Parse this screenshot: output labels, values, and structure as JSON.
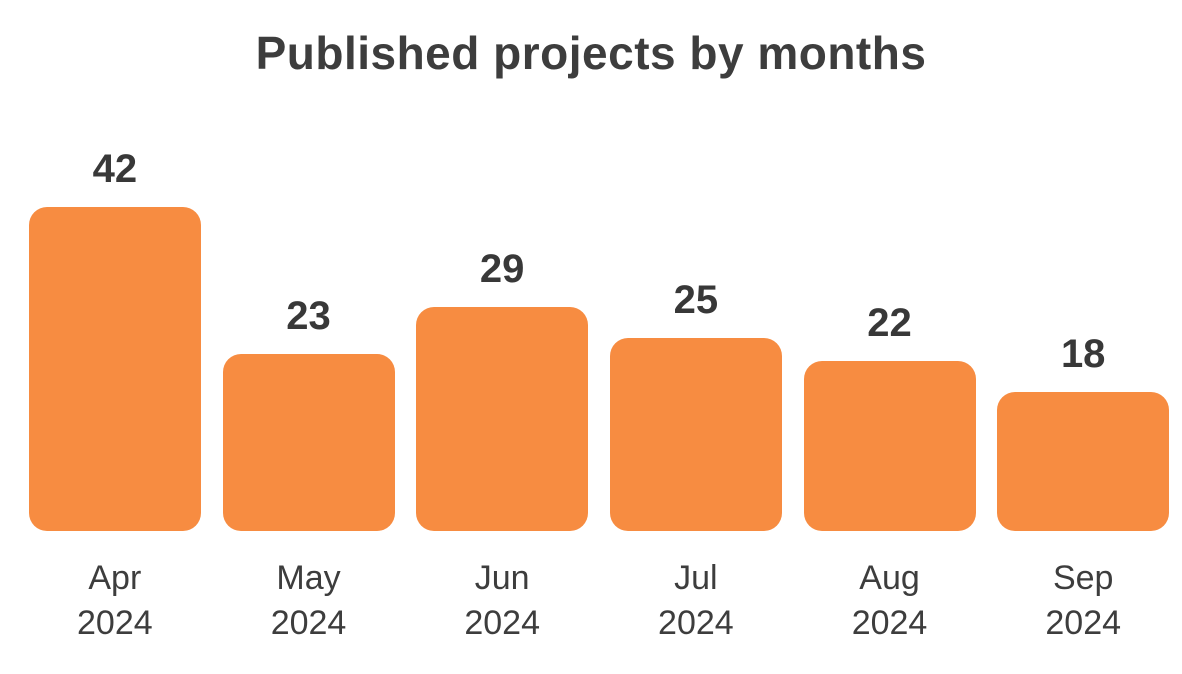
{
  "chart_data": {
    "type": "bar",
    "title": "Published projects by months",
    "categories": [
      "Apr 2024",
      "May 2024",
      "Jun 2024",
      "Jul 2024",
      "Aug 2024",
      "Sep 2024"
    ],
    "values": [
      42,
      23,
      29,
      25,
      22,
      18
    ],
    "xlabel": "",
    "ylabel": "",
    "ylim": [
      0,
      42
    ],
    "grid": false,
    "legend": false,
    "data_labels": true,
    "bar_color": "#F78C41",
    "text_color": "#3d3d3d",
    "value_label_color": "#383838",
    "background_color": "#ffffff"
  }
}
